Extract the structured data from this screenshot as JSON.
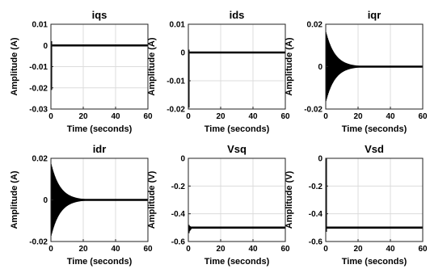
{
  "figure": {
    "xlabel": "Time (seconds)"
  },
  "chart_data": [
    {
      "type": "line",
      "title": "iqs",
      "xlabel": "Time (seconds)",
      "ylabel": "Amplitude (A)",
      "xlim": [
        0,
        60
      ],
      "ylim": [
        -0.03,
        0.01
      ],
      "xticks": [
        0,
        20,
        40,
        60
      ],
      "xticklabels": [
        "0",
        "20",
        "40",
        "60"
      ],
      "yticks": [
        -0.03,
        -0.02,
        -0.01,
        0,
        0.01
      ],
      "yticklabels": [
        "-0.03",
        "-0.02",
        "-0.01",
        "0",
        "0.01"
      ],
      "grid": true,
      "series": [
        {
          "color": "#000000",
          "steady_value": 0,
          "transient": {
            "upper": 0.002,
            "lower": -0.021,
            "duration": 0.6
          }
        }
      ]
    },
    {
      "type": "line",
      "title": "ids",
      "xlabel": "Time (seconds)",
      "ylabel": "Amplitude (A)",
      "xlim": [
        0,
        60
      ],
      "ylim": [
        -0.02,
        0.01
      ],
      "xticks": [
        0,
        20,
        40,
        60
      ],
      "xticklabels": [
        "0",
        "20",
        "40",
        "60"
      ],
      "yticks": [
        -0.02,
        -0.01,
        0,
        0.01
      ],
      "yticklabels": [
        "-0.02",
        "-0.01",
        "0",
        "0.01"
      ],
      "grid": true,
      "series": [
        {
          "color": "#000000",
          "steady_value": 0,
          "transient": {
            "upper": 0.001,
            "lower": -0.0195,
            "duration": 0.5
          }
        }
      ]
    },
    {
      "type": "line",
      "title": "iqr",
      "xlabel": "Time (seconds)",
      "ylabel": "Amplitude (A)",
      "xlim": [
        0,
        60
      ],
      "ylim": [
        -0.02,
        0.02
      ],
      "xticks": [
        0,
        20,
        40,
        60
      ],
      "xticklabels": [
        "0",
        "20",
        "40",
        "60"
      ],
      "yticks": [
        -0.02,
        0,
        0.02
      ],
      "yticklabels": [
        "-0.02",
        "0",
        "0.02"
      ],
      "grid": true,
      "series": [
        {
          "color": "#000000",
          "steady_value": 0,
          "decay_envelope": {
            "initial_amplitude": 0.017,
            "time_constant": 5.5,
            "settled_by": 28
          }
        }
      ]
    },
    {
      "type": "line",
      "title": "idr",
      "xlabel": "Time (seconds)",
      "ylabel": "Amplitude (A)",
      "xlim": [
        0,
        60
      ],
      "ylim": [
        -0.02,
        0.02
      ],
      "xticks": [
        0,
        20,
        40,
        60
      ],
      "xticklabels": [
        "0",
        "20",
        "40",
        "60"
      ],
      "yticks": [
        -0.02,
        0,
        0.02
      ],
      "yticklabels": [
        "-0.02",
        "0",
        "0.02"
      ],
      "grid": true,
      "series": [
        {
          "color": "#000000",
          "steady_value": 0,
          "decay_envelope": {
            "initial_amplitude": 0.018,
            "time_constant": 5.5,
            "settled_by": 28
          }
        }
      ]
    },
    {
      "type": "line",
      "title": "Vsq",
      "xlabel": "Time (seconds)",
      "ylabel": "Amplitude (V)",
      "xlim": [
        0,
        60
      ],
      "ylim": [
        -0.6,
        0
      ],
      "xticks": [
        0,
        20,
        40,
        60
      ],
      "xticklabels": [
        "0",
        "20",
        "40",
        "60"
      ],
      "yticks": [
        -0.6,
        -0.4,
        -0.2,
        0
      ],
      "yticklabels": [
        "-0.6",
        "-0.4",
        "-0.2",
        "0"
      ],
      "grid": true,
      "series": [
        {
          "color": "#000000",
          "steady_value": -0.5,
          "transient": {
            "upper": -0.48,
            "lower": -0.54,
            "duration": 2.5
          }
        }
      ]
    },
    {
      "type": "line",
      "title": "Vsd",
      "xlabel": "Time (seconds)",
      "ylabel": "Amplitude (V)",
      "xlim": [
        0,
        60
      ],
      "ylim": [
        -0.6,
        0
      ],
      "xticks": [
        0,
        20,
        40,
        60
      ],
      "xticklabels": [
        "0",
        "20",
        "40",
        "60"
      ],
      "yticks": [
        -0.6,
        -0.4,
        -0.2,
        0
      ],
      "yticklabels": [
        "-0.6",
        "-0.4",
        "-0.2",
        "0"
      ],
      "grid": true,
      "series": [
        {
          "color": "#000000",
          "steady_value": -0.5,
          "transient": {
            "upper": 0,
            "lower": -0.53,
            "duration": 0.6
          }
        }
      ]
    }
  ]
}
